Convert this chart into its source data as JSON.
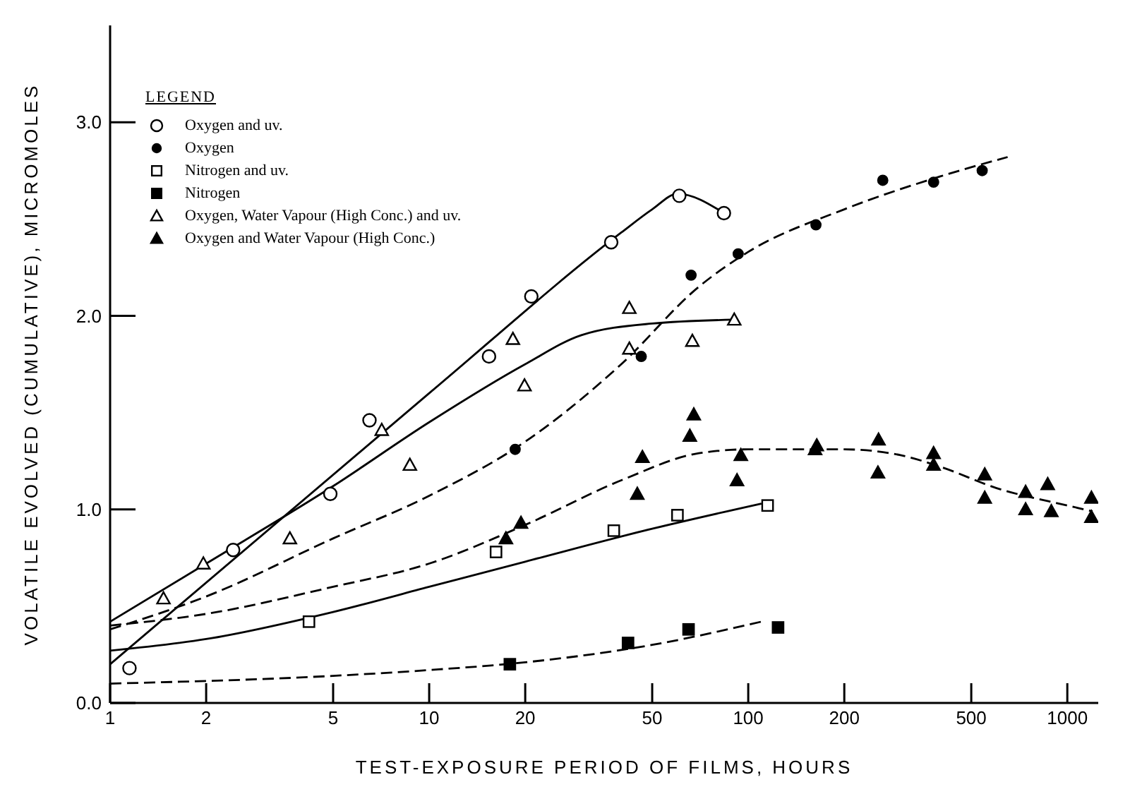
{
  "chart_data": {
    "type": "scatter",
    "xlabel": "TEST-EXPOSURE PERIOD OF FILMS, HOURS",
    "ylabel": "VOLATILE EVOLVED (CUMULATIVE), MICROMOLES",
    "legend_title": "LEGEND",
    "legend": "top left",
    "log": "x",
    "xlim": [
      1,
      1250
    ],
    "xticks": [
      1,
      2,
      5,
      10,
      20,
      50,
      100,
      200,
      500,
      1000
    ],
    "ylim": [
      0,
      3.5
    ],
    "yticks": [
      {
        "value": 0,
        "label": "0.0"
      },
      {
        "value": 1,
        "label": "1.0"
      },
      {
        "value": 2,
        "label": "2.0"
      },
      {
        "value": 3,
        "label": "3.0"
      }
    ],
    "series": [
      {
        "name": "Oxygen and uv.",
        "marker": "circle",
        "color": "#ffffff",
        "x": [
          1.15,
          2.43,
          4.9,
          6.5,
          15.4,
          20.9,
          37.2,
          60.8,
          83.9
        ],
        "values": [
          0.18,
          0.79,
          1.08,
          1.46,
          1.79,
          2.1,
          2.38,
          2.62,
          2.53
        ]
      },
      {
        "name": "Oxygen",
        "marker": "circle",
        "color": "#000000",
        "x": [
          18.6,
          46.2,
          66.2,
          93,
          163,
          264,
          381,
          541
        ],
        "values": [
          1.31,
          1.79,
          2.21,
          2.32,
          2.47,
          2.7,
          2.69,
          2.75
        ]
      },
      {
        "name": "Nitrogen and uv.",
        "marker": "square",
        "color": "#ffffff",
        "x": [
          4.2,
          16.2,
          37.9,
          60,
          115
        ],
        "values": [
          0.42,
          0.78,
          0.89,
          0.97,
          1.02
        ]
      },
      {
        "name": "Nitrogen",
        "marker": "square",
        "color": "#000000",
        "x": [
          17.9,
          42,
          65,
          124
        ],
        "values": [
          0.2,
          0.31,
          0.38,
          0.39
        ]
      },
      {
        "name": "Oxygen, Water Vapour (High Conc.) and uv.",
        "marker": "triangle",
        "color": "#ffffff",
        "x": [
          1.47,
          1.96,
          3.66,
          7.1,
          8.7,
          18.3,
          19.9,
          42.4,
          42.4,
          66.8,
          90.4
        ],
        "values": [
          0.54,
          0.72,
          0.85,
          1.41,
          1.23,
          1.88,
          1.64,
          2.04,
          1.83,
          1.87,
          1.98
        ]
      },
      {
        "name": "Oxygen and Water Vapour (High Conc.)",
        "marker": "triangle",
        "color": "#000000",
        "x": [
          17.4,
          19.4,
          46.6,
          44.9,
          67.5,
          65.6,
          94.8,
          92.2,
          164,
          162,
          256,
          255,
          381,
          381,
          551,
          551,
          740,
          740,
          868,
          891,
          1190,
          1190
        ],
        "values": [
          0.85,
          0.93,
          1.27,
          1.08,
          1.49,
          1.38,
          1.28,
          1.15,
          1.33,
          1.31,
          1.36,
          1.19,
          1.29,
          1.23,
          1.18,
          1.06,
          1.09,
          1.0,
          1.13,
          0.99,
          1.06,
          0.96
        ]
      },
      {
        "type": "line",
        "marker": "none",
        "line_style": "solid",
        "color": "#000000",
        "x": [
          1,
          10,
          40,
          50,
          60,
          84
        ],
        "values": [
          0.2,
          1.6,
          2.43,
          2.55,
          2.63,
          2.53
        ]
      },
      {
        "type": "line",
        "marker": "none",
        "line_style": "dashed",
        "color": "#000000",
        "x": [
          1,
          2,
          5,
          10,
          20,
          40,
          70,
          100,
          200,
          400,
          650
        ],
        "values": [
          0.38,
          0.55,
          0.85,
          1.07,
          1.35,
          1.75,
          2.15,
          2.33,
          2.55,
          2.72,
          2.82
        ]
      },
      {
        "type": "line",
        "marker": "none",
        "line_style": "solid",
        "color": "#000000",
        "x": [
          1,
          2,
          5,
          10,
          20,
          50,
          110
        ],
        "values": [
          0.27,
          0.33,
          0.47,
          0.6,
          0.73,
          0.9,
          1.03
        ]
      },
      {
        "type": "line",
        "marker": "none",
        "line_style": "dashed",
        "color": "#000000",
        "x": [
          1,
          5,
          10,
          20,
          50,
          110
        ],
        "values": [
          0.1,
          0.14,
          0.17,
          0.21,
          0.3,
          0.42
        ]
      },
      {
        "type": "line",
        "marker": "none",
        "line_style": "solid",
        "color": "#000000",
        "x": [
          1,
          2,
          5,
          10,
          20,
          30,
          50,
          90
        ],
        "values": [
          0.42,
          0.72,
          1.12,
          1.45,
          1.75,
          1.9,
          1.96,
          1.98
        ]
      },
      {
        "type": "line",
        "marker": "none",
        "line_style": "dashed",
        "color": "#000000",
        "x": [
          1,
          2,
          5,
          10,
          20,
          40,
          70,
          100,
          200,
          300,
          400,
          600,
          1000,
          1200
        ],
        "values": [
          0.4,
          0.46,
          0.6,
          0.72,
          0.92,
          1.15,
          1.29,
          1.31,
          1.31,
          1.28,
          1.22,
          1.11,
          1.02,
          0.99
        ]
      }
    ]
  }
}
